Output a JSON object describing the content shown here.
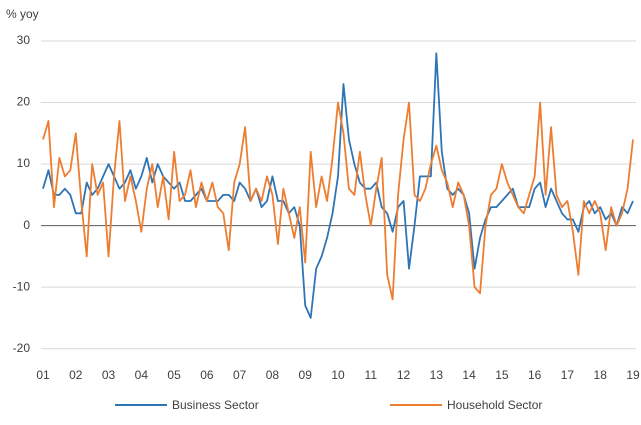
{
  "chart_data": {
    "type": "line",
    "y_label": "% yoy",
    "categories": [
      "01",
      null,
      null,
      null,
      null,
      null,
      "02",
      null,
      null,
      null,
      null,
      null,
      "03",
      null,
      null,
      null,
      null,
      null,
      "04",
      null,
      null,
      null,
      null,
      null,
      "05",
      null,
      null,
      null,
      null,
      null,
      "06",
      null,
      null,
      null,
      null,
      null,
      "07",
      null,
      null,
      null,
      null,
      null,
      "08",
      null,
      null,
      null,
      null,
      null,
      "09",
      null,
      null,
      null,
      null,
      null,
      "10",
      null,
      null,
      null,
      null,
      null,
      "11",
      null,
      null,
      null,
      null,
      null,
      "12",
      null,
      null,
      null,
      null,
      null,
      "13",
      null,
      null,
      null,
      null,
      null,
      "14",
      null,
      null,
      null,
      null,
      null,
      "15",
      null,
      null,
      null,
      null,
      null,
      "16",
      null,
      null,
      null,
      null,
      null,
      "17",
      null,
      null,
      null,
      null,
      null,
      "18",
      null,
      null,
      null,
      null,
      null,
      "19"
    ],
    "series": [
      {
        "name": "Business Sector",
        "color": "#2e75b6",
        "values": [
          6,
          9,
          5,
          5,
          6,
          5,
          2,
          2,
          7,
          5,
          6,
          8,
          10,
          8,
          6,
          7,
          9,
          6,
          8,
          11,
          7,
          10,
          8,
          7,
          6,
          7,
          4,
          4,
          5,
          6,
          4,
          4,
          4,
          5,
          5,
          4,
          7,
          6,
          4,
          6,
          3,
          4,
          8,
          4,
          4,
          2,
          3,
          0,
          -13,
          -15,
          -7,
          -5,
          -2,
          2,
          8,
          23,
          14,
          10,
          7,
          6,
          6,
          7,
          3,
          2,
          -1,
          3,
          4,
          -7,
          0,
          8,
          8,
          8,
          28,
          12,
          6,
          5,
          6,
          5,
          2,
          -7,
          -2,
          1,
          3,
          3,
          4,
          5,
          6,
          3,
          3,
          3,
          6,
          7,
          3,
          6,
          4,
          2,
          1,
          1,
          -1,
          3,
          4,
          2,
          3,
          1,
          2,
          0,
          3,
          2,
          4
        ]
      },
      {
        "name": "Household Sector",
        "color": "#ed7d31",
        "values": [
          14,
          17,
          3,
          11,
          8,
          9,
          15,
          4,
          -5,
          10,
          5,
          7,
          -5,
          8,
          17,
          4,
          8,
          4,
          -1,
          6,
          10,
          3,
          8,
          1,
          12,
          4,
          5,
          9,
          3,
          7,
          4,
          7,
          3,
          2,
          -4,
          7,
          10,
          16,
          4,
          6,
          4,
          8,
          5,
          -3,
          6,
          2,
          -2,
          3,
          -6,
          12,
          3,
          8,
          4,
          11,
          20,
          15,
          6,
          5,
          12,
          5,
          0,
          6,
          11,
          -8,
          -12,
          5,
          14,
          20,
          5,
          4,
          6,
          10,
          13,
          9,
          7,
          3,
          7,
          5,
          0,
          -10,
          -11,
          0,
          5,
          6,
          10,
          7,
          5,
          3,
          2,
          5,
          8,
          20,
          5,
          16,
          5,
          3,
          4,
          -1,
          -8,
          4,
          2,
          4,
          2,
          -4,
          3,
          0,
          2,
          6,
          14
        ]
      }
    ],
    "ylim": [
      -22,
      30
    ],
    "yticks": [
      30,
      20,
      10,
      0,
      -10,
      -20
    ],
    "grid": true,
    "legend": "bottom"
  }
}
